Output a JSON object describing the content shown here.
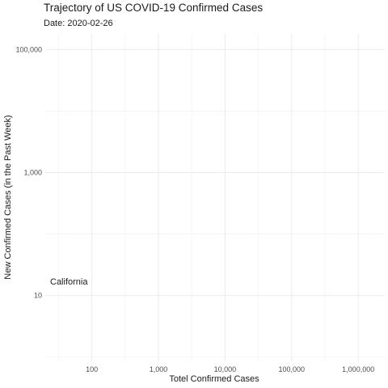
{
  "chart_data": {
    "type": "scatter",
    "title": "Trajectory of US COVID-19 Confirmed Cases",
    "subtitle": "Date: 2020-02-26",
    "xlabel": "Totel Confirmed Cases",
    "ylabel": "New Confirmed Cases (in the Past Week)",
    "x_scale": "log10",
    "y_scale": "log10",
    "xlim": [
      20,
      2500000
    ],
    "ylim": [
      0.85,
      180000
    ],
    "x_ticks": [
      100,
      1000,
      10000,
      100000,
      1000000
    ],
    "x_tick_labels": [
      "100",
      "1,000",
      "10,000",
      "100,000",
      "1,000,000"
    ],
    "y_ticks": [
      10,
      1000,
      100000
    ],
    "y_tick_labels": [
      "10",
      "1,000",
      "100,000"
    ],
    "grid": true,
    "legend": "none",
    "points": [
      {
        "label": "California",
        "x": 20,
        "y": 17
      }
    ]
  }
}
